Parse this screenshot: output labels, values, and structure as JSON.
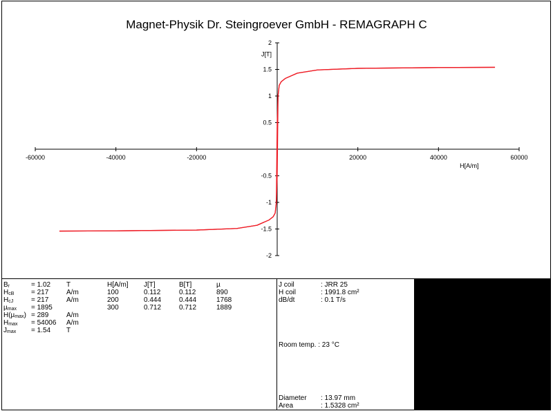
{
  "title": "Magnet-Physik Dr. Steingroever GmbH - REMAGRAPH C",
  "chart_data": {
    "type": "line",
    "x_label": "H[A/m]",
    "y_label": "J[T]",
    "xlim": [
      -60000,
      60000
    ],
    "ylim": [
      -2,
      2
    ],
    "x_ticks": [
      -60000,
      -40000,
      -20000,
      20000,
      40000,
      60000
    ],
    "x_tick_labels": [
      "-60000",
      "-40000",
      "-20000",
      "20000",
      "40000",
      "60000"
    ],
    "y_ticks": [
      2,
      1.5,
      1,
      0.5,
      -0.5,
      -1,
      -1.5,
      -2
    ],
    "y_tick_labels": [
      "2",
      "1.5",
      "1",
      "0.5",
      "-0.5",
      "-1",
      "-1.5",
      "-2"
    ],
    "series": [
      {
        "color": "#ee1c25",
        "upper_branch": [
          [
            -54006,
            -1.54
          ],
          [
            -40000,
            -1.535
          ],
          [
            -20000,
            -1.52
          ],
          [
            -10000,
            -1.49
          ],
          [
            -5000,
            -1.43
          ],
          [
            -2000,
            -1.33
          ],
          [
            -1000,
            -1.27
          ],
          [
            -500,
            -1.2
          ],
          [
            -217,
            -1.0
          ],
          [
            0,
            0.5
          ],
          [
            217,
            1.02
          ],
          [
            500,
            1.2
          ],
          [
            1000,
            1.27
          ],
          [
            2000,
            1.33
          ],
          [
            5000,
            1.43
          ],
          [
            10000,
            1.49
          ],
          [
            20000,
            1.52
          ],
          [
            40000,
            1.535
          ],
          [
            54006,
            1.54
          ]
        ],
        "lower_branch": [
          [
            -54006,
            -1.54
          ],
          [
            -40000,
            -1.535
          ],
          [
            -20000,
            -1.52
          ],
          [
            -10000,
            -1.49
          ],
          [
            -5000,
            -1.43
          ],
          [
            -2000,
            -1.33
          ],
          [
            -1000,
            -1.27
          ],
          [
            -500,
            -1.2
          ],
          [
            -217,
            -1.02
          ],
          [
            0,
            -0.5
          ],
          [
            217,
            1.0
          ],
          [
            500,
            1.2
          ],
          [
            1000,
            1.27
          ],
          [
            2000,
            1.33
          ],
          [
            5000,
            1.43
          ],
          [
            10000,
            1.49
          ],
          [
            20000,
            1.52
          ],
          [
            40000,
            1.535
          ],
          [
            54006,
            1.54
          ]
        ]
      }
    ],
    "grid": false
  },
  "params": {
    "br": {
      "sub": "r",
      "val": "= 1.02",
      "unit": "T"
    },
    "hcb": {
      "sub": "cB",
      "val": "= 217",
      "unit": "A/m"
    },
    "hcj": {
      "sub": "cJ",
      "val": "= 217",
      "unit": "A/m"
    },
    "mumax": {
      "sym": "µ",
      "sub": "max",
      "val": "= 1895"
    },
    "hmu": {
      "pre": "H(µ",
      "sub": "max",
      "post": ")",
      "val": "= 289",
      "unit": "A/m"
    },
    "hmax": {
      "sub": "max",
      "val": "= 54006",
      "unit": "A/m"
    },
    "jmax": {
      "sub": "max",
      "val": "= 1.54",
      "unit": "T"
    }
  },
  "table": {
    "headers": [
      "H[A/m]",
      "J[T]",
      "B[T]",
      "µ"
    ],
    "rows": [
      [
        "100",
        "0.112",
        "0.112",
        "890"
      ],
      [
        "200",
        "0.444",
        "0.444",
        "1768"
      ],
      [
        "300",
        "0.712",
        "0.712",
        "1889"
      ]
    ]
  },
  "meta": {
    "jcoil_label": "J coil",
    "jcoil_val": ": JRR 25",
    "hcoil_label": "H coil",
    "hcoil_val": ": 1991.8 cm²",
    "dbdt_label": "dB/dt",
    "dbdt_val": ": 0.1 T/s",
    "roomtemp": "Room temp. : 23 °C",
    "diameter_label": "Diameter",
    "diameter_val": ": 13.97 mm",
    "area_label": "Area",
    "area_val": ": 1.5328 cm²"
  }
}
